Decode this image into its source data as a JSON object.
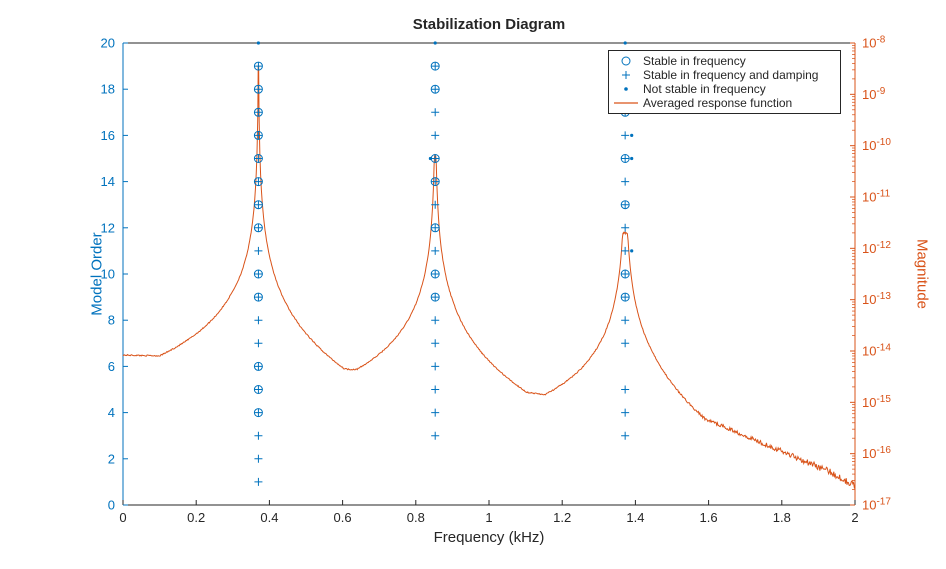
{
  "chart_data": {
    "type": "scatter+line",
    "title": "Stabilization Diagram",
    "xlabel": "Frequency (kHz)",
    "ylabel_left": "Model Order",
    "ylabel_right": "Magnitude",
    "x_range": [
      0,
      2
    ],
    "y_left_range": [
      0,
      20
    ],
    "y_right_log10_range": [
      -17,
      -8
    ],
    "x_ticks": [
      0,
      0.2,
      0.4,
      0.6,
      0.8,
      1,
      1.2,
      1.4,
      1.6,
      1.8,
      2
    ],
    "x_tick_labels": [
      "0",
      "0.2",
      "0.4",
      "0.6",
      "0.8",
      "1",
      "1.2",
      "1.4",
      "1.6",
      "1.8",
      "2"
    ],
    "y_left_ticks": [
      0,
      2,
      4,
      6,
      8,
      10,
      12,
      14,
      16,
      18,
      20
    ],
    "y_right_decades": [
      -17,
      -16,
      -15,
      -14,
      -13,
      -12,
      -11,
      -10,
      -9,
      -8
    ],
    "grid": "off",
    "legend_position": "northeast",
    "colors": {
      "left_axis": "#0072BD",
      "right_axis": "#D95319",
      "marker": "#0072BD",
      "line": "#D95319",
      "axes": "#262626",
      "background": "#FFFFFF"
    },
    "legend": [
      {
        "marker": "circle",
        "label": "Stable in frequency"
      },
      {
        "marker": "plus",
        "label": "Stable in frequency and damping"
      },
      {
        "marker": "dot",
        "label": "Not stable in frequency"
      },
      {
        "marker": "line",
        "label": "Averaged response function"
      }
    ],
    "series": {
      "stable_in_frequency": {
        "marker": "circle",
        "points": [
          [
            0.37,
            19
          ],
          [
            0.37,
            18
          ],
          [
            0.37,
            17
          ],
          [
            0.37,
            16
          ],
          [
            0.37,
            15
          ],
          [
            0.37,
            14
          ],
          [
            0.37,
            13
          ],
          [
            0.37,
            12
          ],
          [
            0.37,
            10
          ],
          [
            0.37,
            9
          ],
          [
            0.37,
            6
          ],
          [
            0.37,
            5
          ],
          [
            0.37,
            4
          ],
          [
            0.853,
            19
          ],
          [
            0.853,
            18
          ],
          [
            0.853,
            15
          ],
          [
            0.853,
            14
          ],
          [
            0.853,
            12
          ],
          [
            0.853,
            10
          ],
          [
            0.853,
            9
          ],
          [
            1.372,
            17
          ],
          [
            1.372,
            15
          ],
          [
            1.372,
            13
          ],
          [
            1.372,
            10
          ],
          [
            1.372,
            9
          ]
        ]
      },
      "stable_in_frequency_and_damping": {
        "marker": "plus",
        "points": [
          [
            0.37,
            19
          ],
          [
            0.37,
            18
          ],
          [
            0.37,
            17
          ],
          [
            0.37,
            16
          ],
          [
            0.37,
            15
          ],
          [
            0.37,
            14
          ],
          [
            0.37,
            13
          ],
          [
            0.37,
            12
          ],
          [
            0.37,
            11
          ],
          [
            0.37,
            10
          ],
          [
            0.37,
            9
          ],
          [
            0.37,
            8
          ],
          [
            0.37,
            7
          ],
          [
            0.37,
            6
          ],
          [
            0.37,
            5
          ],
          [
            0.37,
            4
          ],
          [
            0.37,
            3
          ],
          [
            0.37,
            2
          ],
          [
            0.37,
            1
          ],
          [
            0.853,
            19
          ],
          [
            0.853,
            18
          ],
          [
            0.853,
            17
          ],
          [
            0.853,
            16
          ],
          [
            0.853,
            15
          ],
          [
            0.853,
            14
          ],
          [
            0.853,
            13
          ],
          [
            0.853,
            12
          ],
          [
            0.853,
            11
          ],
          [
            0.853,
            10
          ],
          [
            0.853,
            9
          ],
          [
            0.853,
            8
          ],
          [
            0.853,
            7
          ],
          [
            0.853,
            6
          ],
          [
            0.853,
            5
          ],
          [
            0.853,
            4
          ],
          [
            0.853,
            3
          ],
          [
            1.372,
            17
          ],
          [
            1.372,
            16
          ],
          [
            1.372,
            15
          ],
          [
            1.372,
            14
          ],
          [
            1.372,
            13
          ],
          [
            1.372,
            12
          ],
          [
            1.372,
            11
          ],
          [
            1.372,
            10
          ],
          [
            1.372,
            9
          ],
          [
            1.372,
            8
          ],
          [
            1.372,
            7
          ],
          [
            1.372,
            5
          ],
          [
            1.372,
            4
          ],
          [
            1.372,
            3
          ]
        ]
      },
      "not_stable_in_frequency": {
        "marker": "dot",
        "points": [
          [
            0.37,
            20
          ],
          [
            0.853,
            20
          ],
          [
            1.372,
            20
          ],
          [
            0.84,
            15
          ],
          [
            1.39,
            16
          ],
          [
            1.39,
            15
          ],
          [
            1.39,
            11
          ]
        ]
      },
      "averaged_response_function": {
        "style": "line",
        "baseline_log10_anchors": [
          [
            0,
            -14.08
          ],
          [
            0.3,
            -14.12
          ],
          [
            0.62,
            -14.5
          ],
          [
            0.9,
            -14.6
          ],
          [
            1.15,
            -14.85
          ],
          [
            1.45,
            -15.05
          ],
          [
            1.6,
            -15.35
          ],
          [
            1.8,
            -15.95
          ],
          [
            1.93,
            -16.35
          ],
          [
            2,
            -16.62
          ]
        ],
        "peaks": [
          {
            "f": 0.37,
            "peak_log10": -8.45,
            "width": 0.27,
            "slope": 2.2
          },
          {
            "f": 0.853,
            "peak_log10": -10.2,
            "width": 0.25,
            "slope": 2.2
          },
          {
            "f": 1.372,
            "peak_log10": -11.7,
            "width": 0.22,
            "slope": 2.2
          }
        ],
        "noise": {
          "base": 0.012,
          "extra_after": 1.45,
          "extra_rate": 0.11
        }
      }
    }
  }
}
